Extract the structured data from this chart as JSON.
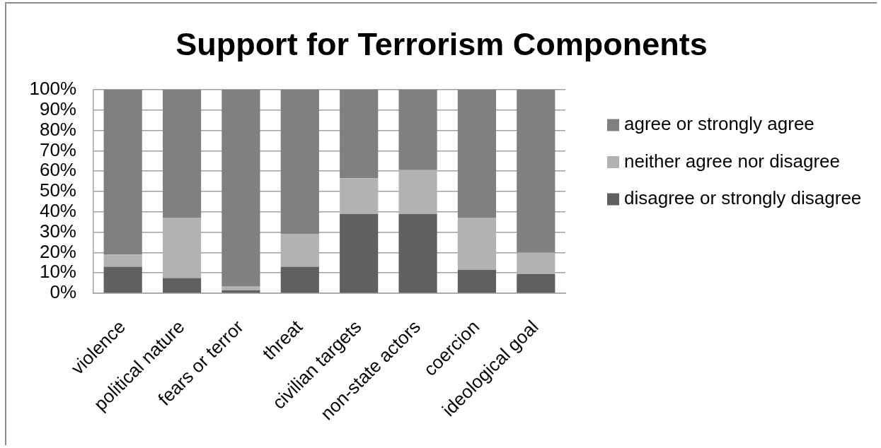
{
  "chart_data": {
    "type": "bar",
    "title": "Support for Terrorism Components",
    "categories": [
      "violence",
      "political nature",
      "fears or terror",
      "threat",
      "civilian targets",
      "non-state actors",
      "coercion",
      "ideological goal"
    ],
    "series": [
      {
        "name": "disagree or strongly disagree",
        "color": "#606060",
        "values": [
          13,
          7.5,
          1.5,
          13,
          39,
          39,
          11.5,
          9.5
        ]
      },
      {
        "name": "neither agree nor disagree",
        "color": "#b2b2b2",
        "values": [
          6,
          29.5,
          2,
          16,
          17.5,
          21.5,
          25.5,
          10.5
        ]
      },
      {
        "name": "agree or strongly agree",
        "color": "#808080",
        "values": [
          81,
          63,
          96.5,
          71,
          43.5,
          39.5,
          63,
          80
        ]
      }
    ],
    "stacked": true,
    "ylim": [
      0,
      100
    ],
    "yticks": [
      {
        "value": 0,
        "label": "0%"
      },
      {
        "value": 10,
        "label": "10%"
      },
      {
        "value": 20,
        "label": "20%"
      },
      {
        "value": 30,
        "label": "30%"
      },
      {
        "value": 40,
        "label": "40%"
      },
      {
        "value": 50,
        "label": "50%"
      },
      {
        "value": 60,
        "label": "60%"
      },
      {
        "value": 70,
        "label": "70%"
      },
      {
        "value": 80,
        "label": "80%"
      },
      {
        "value": 90,
        "label": "90%"
      },
      {
        "value": 100,
        "label": "100%"
      }
    ],
    "grid": "y",
    "legend": "right"
  }
}
